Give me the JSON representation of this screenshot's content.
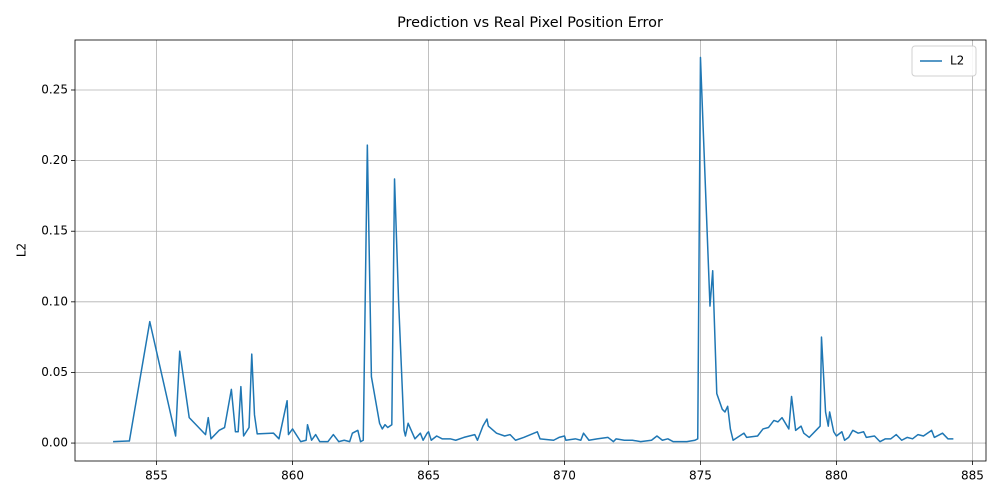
{
  "chart_data": {
    "type": "line",
    "title": "Prediction vs Real Pixel Position Error",
    "ylabel": "L2",
    "x": [
      853.4,
      854.0,
      854.75,
      855.7,
      855.85,
      856.2,
      856.8,
      856.9,
      857.0,
      857.3,
      857.5,
      857.75,
      857.9,
      858.0,
      858.1,
      858.2,
      858.4,
      858.5,
      858.6,
      858.7,
      859.3,
      859.5,
      859.8,
      859.85,
      860.0,
      860.3,
      860.5,
      860.55,
      860.7,
      860.85,
      861.0,
      861.3,
      861.5,
      861.7,
      861.9,
      862.1,
      862.2,
      862.4,
      862.5,
      862.6,
      862.75,
      862.9,
      863.2,
      863.3,
      863.4,
      863.5,
      863.65,
      863.75,
      863.9,
      864.1,
      864.15,
      864.25,
      864.5,
      864.7,
      864.8,
      864.95,
      865.0,
      865.1,
      865.3,
      865.5,
      865.8,
      866.0,
      866.3,
      866.5,
      866.7,
      866.8,
      867.0,
      867.15,
      867.2,
      867.5,
      867.8,
      868.0,
      868.2,
      868.5,
      869.0,
      869.1,
      869.6,
      869.8,
      870.0,
      870.05,
      870.4,
      870.6,
      870.7,
      870.9,
      871.2,
      871.6,
      871.8,
      871.9,
      872.2,
      872.5,
      872.8,
      873.2,
      873.4,
      873.6,
      873.8,
      874.0,
      874.5,
      874.8,
      874.9,
      875.0,
      875.35,
      875.45,
      875.6,
      875.8,
      875.9,
      876.0,
      876.1,
      876.2,
      876.6,
      876.7,
      877.1,
      877.3,
      877.5,
      877.7,
      877.85,
      878.0,
      878.25,
      878.35,
      878.5,
      878.7,
      878.8,
      879.0,
      879.3,
      879.4,
      879.45,
      879.6,
      879.7,
      879.75,
      879.9,
      880.0,
      880.2,
      880.3,
      880.45,
      880.6,
      880.8,
      881.0,
      881.1,
      881.4,
      881.6,
      881.8,
      882.0,
      882.2,
      882.4,
      882.6,
      882.8,
      883.0,
      883.2,
      883.5,
      883.6,
      883.9,
      884.1,
      884.3
    ],
    "series": [
      {
        "name": "L2",
        "color": "#1f77b4",
        "values": [
          0.001,
          0.0015,
          0.086,
          0.005,
          0.065,
          0.018,
          0.006,
          0.018,
          0.003,
          0.009,
          0.011,
          0.038,
          0.008,
          0.008,
          0.04,
          0.005,
          0.011,
          0.063,
          0.02,
          0.0065,
          0.007,
          0.003,
          0.03,
          0.006,
          0.01,
          0.001,
          0.002,
          0.013,
          0.002,
          0.006,
          0.001,
          0.001,
          0.006,
          0.001,
          0.002,
          0.001,
          0.007,
          0.009,
          0.001,
          0.002,
          0.211,
          0.047,
          0.014,
          0.01,
          0.013,
          0.011,
          0.013,
          0.187,
          0.1,
          0.009,
          0.005,
          0.014,
          0.003,
          0.007,
          0.002,
          0.007,
          0.008,
          0.002,
          0.005,
          0.003,
          0.003,
          0.002,
          0.004,
          0.005,
          0.006,
          0.002,
          0.012,
          0.017,
          0.012,
          0.007,
          0.005,
          0.006,
          0.002,
          0.004,
          0.008,
          0.003,
          0.002,
          0.004,
          0.005,
          0.002,
          0.003,
          0.002,
          0.007,
          0.002,
          0.003,
          0.004,
          0.001,
          0.003,
          0.002,
          0.002,
          0.001,
          0.002,
          0.005,
          0.002,
          0.003,
          0.001,
          0.001,
          0.002,
          0.003,
          0.273,
          0.097,
          0.122,
          0.035,
          0.024,
          0.022,
          0.026,
          0.01,
          0.002,
          0.007,
          0.004,
          0.005,
          0.01,
          0.011,
          0.016,
          0.015,
          0.018,
          0.01,
          0.033,
          0.009,
          0.012,
          0.007,
          0.004,
          0.01,
          0.012,
          0.075,
          0.022,
          0.012,
          0.022,
          0.008,
          0.005,
          0.008,
          0.002,
          0.004,
          0.009,
          0.007,
          0.008,
          0.004,
          0.005,
          0.001,
          0.003,
          0.003,
          0.006,
          0.002,
          0.004,
          0.003,
          0.006,
          0.005,
          0.009,
          0.004,
          0.007,
          0.003,
          0.003
        ]
      }
    ],
    "xlim": [
      852.0,
      885.5
    ],
    "ylim": [
      -0.0127,
      0.2854
    ],
    "xticks": [
      855,
      860,
      865,
      870,
      875,
      880,
      885
    ],
    "yticks": [
      {
        "value": 0,
        "label": "0.00"
      },
      0.05,
      {
        "value": 0.1,
        "label": "0.10"
      },
      0.15,
      {
        "value": 0.2,
        "label": "0.20"
      },
      0.25
    ],
    "grid": true,
    "legend": "upper right"
  }
}
